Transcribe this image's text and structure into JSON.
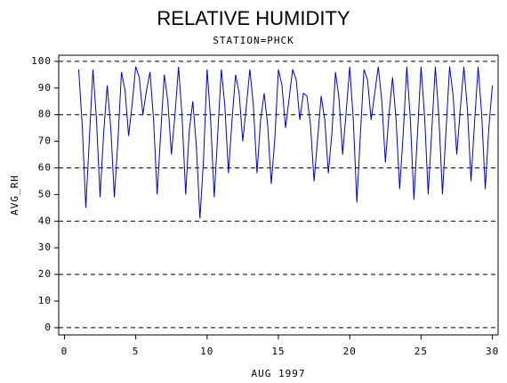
{
  "chart_data": {
    "type": "line",
    "title": "RELATIVE HUMIDITY",
    "subtitle": "STATION=PHCK",
    "x_label": "AUG 1997",
    "y_label": "AVG_RH",
    "xlim": [
      -0.4,
      30.4
    ],
    "ylim": [
      -2.7,
      102.3
    ],
    "xticks": [
      0,
      5,
      10,
      15,
      20,
      25,
      30
    ],
    "yticks": [
      0,
      10,
      20,
      30,
      40,
      50,
      60,
      70,
      80,
      90,
      100
    ],
    "grid_lines": [
      0,
      20,
      40,
      60,
      80,
      100
    ],
    "color": "#0000cc",
    "x": [
      1,
      1.25,
      1.5,
      1.75,
      2,
      2.25,
      2.5,
      2.75,
      3,
      3.25,
      3.5,
      3.75,
      4,
      4.25,
      4.5,
      4.75,
      5,
      5.25,
      5.5,
      5.75,
      6,
      6.25,
      6.5,
      6.75,
      7,
      7.25,
      7.5,
      7.75,
      8,
      8.25,
      8.5,
      8.75,
      9,
      9.25,
      9.5,
      9.75,
      10,
      10.25,
      10.5,
      10.75,
      11,
      11.25,
      11.5,
      11.75,
      12,
      12.25,
      12.5,
      12.75,
      13,
      13.25,
      13.5,
      13.75,
      14,
      14.25,
      14.5,
      14.75,
      15,
      15.25,
      15.5,
      15.75,
      16,
      16.25,
      16.5,
      16.75,
      17,
      17.25,
      17.5,
      17.75,
      18,
      18.25,
      18.5,
      18.75,
      19,
      19.25,
      19.5,
      19.75,
      20,
      20.25,
      20.5,
      20.75,
      21,
      21.25,
      21.5,
      21.75,
      22,
      22.25,
      22.5,
      22.75,
      23,
      23.25,
      23.5,
      23.75,
      24,
      24.25,
      24.5,
      24.75,
      25,
      25.25,
      25.5,
      25.75,
      26,
      26.25,
      26.5,
      26.75,
      27,
      27.25,
      27.5,
      27.75,
      28,
      28.25,
      28.5,
      28.75,
      29,
      29.25,
      29.5,
      29.75,
      30
    ],
    "values": [
      97,
      76,
      45,
      71,
      97,
      78,
      49,
      73,
      91,
      75,
      49,
      70,
      96,
      89,
      72,
      84,
      98,
      94,
      80,
      89,
      96,
      78,
      50,
      73,
      95,
      85,
      65,
      80,
      98,
      79,
      50,
      74,
      85,
      68,
      41,
      63,
      97,
      78,
      49,
      73,
      97,
      83,
      58,
      78,
      95,
      88,
      70,
      83,
      97,
      83,
      58,
      78,
      88,
      76,
      54,
      71,
      97,
      91,
      75,
      86,
      97,
      93,
      78,
      88,
      87,
      76,
      55,
      71,
      87,
      78,
      58,
      73,
      96,
      86,
      65,
      81,
      98,
      78,
      47,
      73,
      97,
      93,
      78,
      88,
      98,
      85,
      62,
      80,
      94,
      78,
      52,
      73,
      98,
      78,
      48,
      73,
      98,
      79,
      50,
      74,
      98,
      79,
      50,
      74,
      98,
      87,
      65,
      82,
      98,
      82,
      55,
      77,
      98,
      80,
      52,
      75,
      91
    ]
  }
}
